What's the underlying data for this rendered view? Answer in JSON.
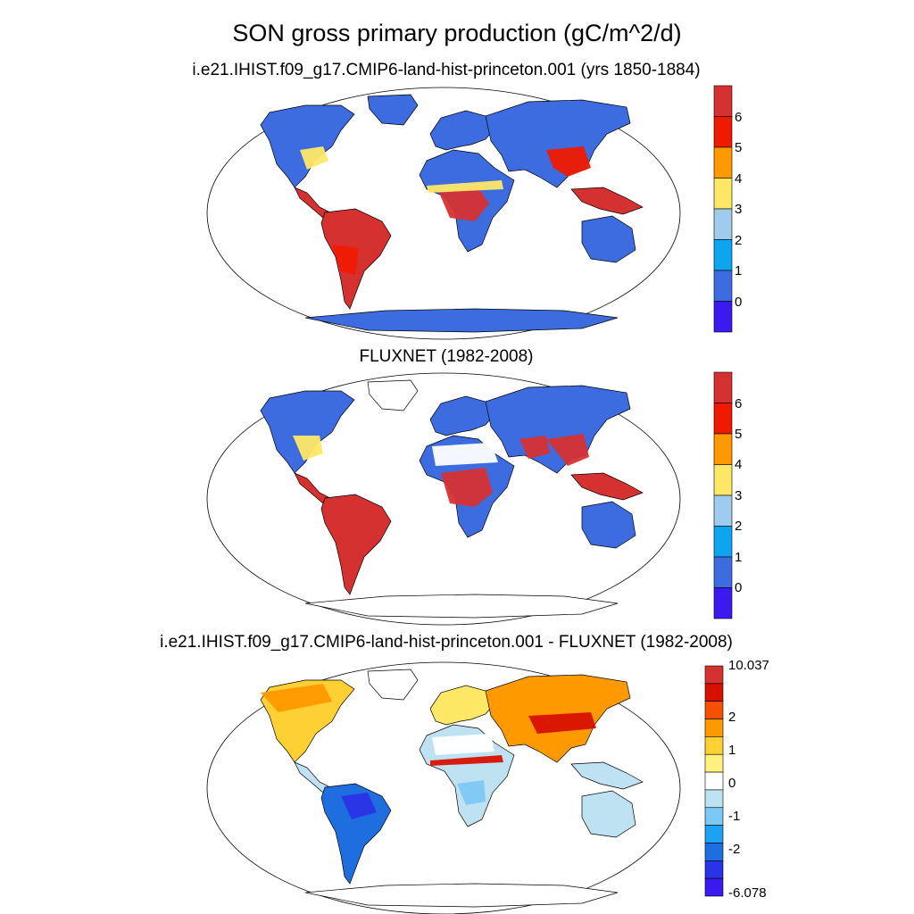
{
  "title": "SON gross primary production (gC/m^2/d)",
  "panels": [
    {
      "id": "model",
      "title": "i.e21.IHIST.f09_g17.CMIP6-land-hist-princeton.001 (yrs 1850-1884)",
      "colorbar": {
        "labels": [
          "6",
          "5",
          "4",
          "3",
          "2",
          "1",
          "0"
        ],
        "colors": [
          "#d63131",
          "#f01a00",
          "#ff9900",
          "#ffe866",
          "#9ecbee",
          "#0ea5f0",
          "#3c6ce0",
          "#3b1af0"
        ]
      }
    },
    {
      "id": "fluxnet",
      "title": "FLUXNET (1982-2008)",
      "colorbar": {
        "labels": [
          "6",
          "5",
          "4",
          "3",
          "2",
          "1",
          "0"
        ],
        "colors": [
          "#d63131",
          "#f01a00",
          "#ff9900",
          "#ffe866",
          "#9ecbee",
          "#0ea5f0",
          "#3c6ce0",
          "#3b1af0"
        ]
      }
    },
    {
      "id": "difference",
      "title": "i.e21.IHIST.f09_g17.CMIP6-land-hist-princeton.001 - FLUXNET (1982-2008)",
      "colorbar": {
        "labels": [
          "10.037",
          "2",
          "1",
          "0",
          "-1",
          "-2",
          "-6.078"
        ],
        "colors": [
          "#d63131",
          "#d81000",
          "#f45000",
          "#ff9900",
          "#ffd033",
          "#fff080",
          "#ffffff",
          "#bfe2f2",
          "#7cc8f4",
          "#1ca2f0",
          "#1f6ee0",
          "#2b33e6",
          "#3b1af0"
        ]
      }
    }
  ]
}
